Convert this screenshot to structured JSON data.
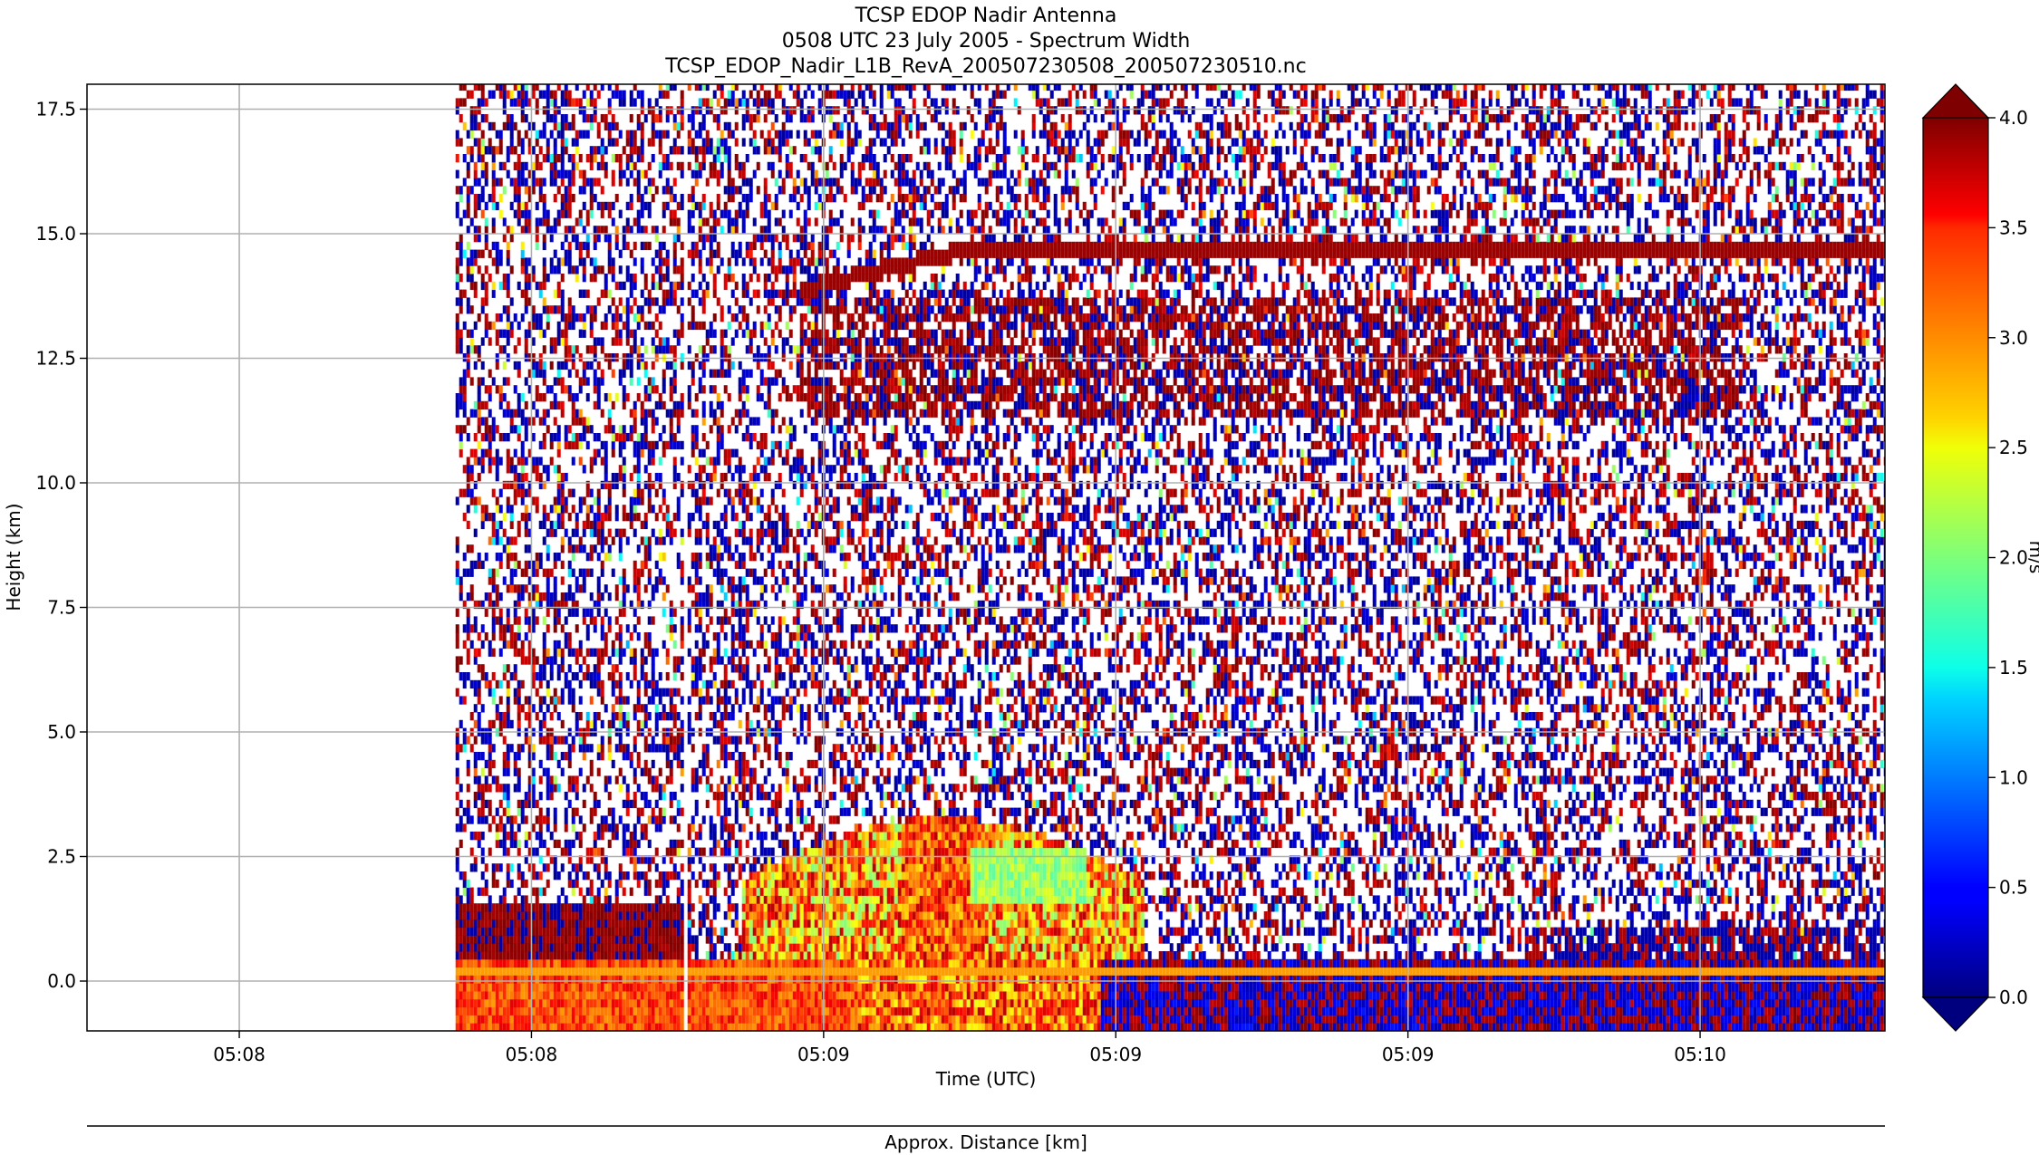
{
  "title": {
    "line1": "TCSP EDOP Nadir Antenna",
    "line2": "0508 UTC 23 July 2005 - Spectrum Width",
    "line3": "TCSP_EDOP_Nadir_L1B_RevA_200507230508_200507230510.nc"
  },
  "chart_data": {
    "type": "heatmap",
    "title": "TCSP EDOP Nadir Antenna / 0508 UTC 23 July 2005 - Spectrum Width",
    "xlabel": "Time (UTC)",
    "ylabel": "Height (km)",
    "secondary_xlabel": "Approx. Distance [km]",
    "x_tick_labels": [
      "05:08",
      "05:08",
      "05:09",
      "05:09",
      "05:09",
      "05:10"
    ],
    "y_ticks": [
      0.0,
      2.5,
      5.0,
      7.5,
      10.0,
      12.5,
      15.0,
      17.5
    ],
    "y_tick_labels": [
      "0.0",
      "2.5",
      "5.0",
      "7.5",
      "10.0",
      "12.5",
      "15.0",
      "17.5"
    ],
    "ylim": [
      -1.0,
      18.0
    ],
    "grid": true,
    "colorbar": {
      "label": "m/s",
      "range": [
        0.0,
        4.0
      ],
      "ticks": [
        0.0,
        0.5,
        1.0,
        1.5,
        2.0,
        2.5,
        3.0,
        3.5,
        4.0
      ],
      "tick_labels": [
        "0.0",
        "0.5",
        "1.0",
        "1.5",
        "2.0",
        "2.5",
        "3.0",
        "3.5",
        "4.0"
      ],
      "extend": "both",
      "colormap": "jet"
    },
    "features": {
      "data_start_fraction": 0.205,
      "tropopause_layer_km": 14.6,
      "anvil_layer_km": [
        11.3,
        13.6
      ],
      "surface_layer_km": [
        -1.0,
        0.3
      ],
      "boundary_layer_top_km": 1.5,
      "convective_core_top_km": 3.2,
      "data_gap_fraction": 0.332
    }
  }
}
